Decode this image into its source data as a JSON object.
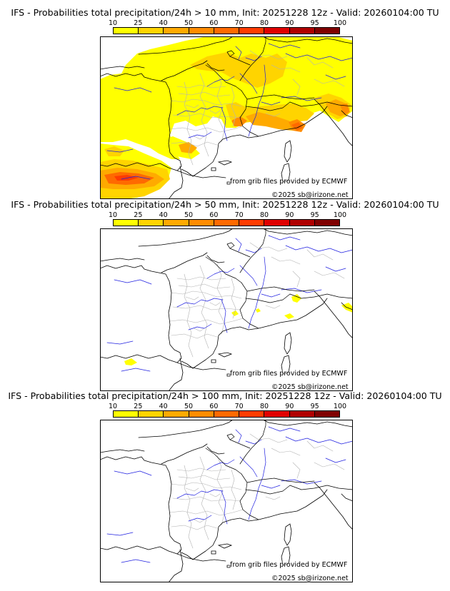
{
  "panels": [
    {
      "id": "p10",
      "title": "IFS - Probabilities total precipitation/24h > 10 mm, Init: 20251228 12z - Valid: 20260104:00 TU",
      "coverage": "wide"
    },
    {
      "id": "p50",
      "title": "IFS - Probabilities total precipitation/24h > 50 mm, Init: 20251228 12z - Valid: 20260104:00 TU",
      "coverage": "sparse"
    },
    {
      "id": "p100",
      "title": "IFS - Probabilities total precipitation/24h > 100 mm, Init: 20251228 12z - Valid: 20260104:00 TU",
      "coverage": "none"
    }
  ],
  "legend": {
    "ticks": [
      "10",
      "25",
      "40",
      "50",
      "60",
      "70",
      "80",
      "90",
      "95",
      "100"
    ],
    "colors": [
      "#ffff00",
      "#ffd400",
      "#ffaa00",
      "#ff8c00",
      "#ff6a00",
      "#ff3c00",
      "#e00000",
      "#b00000",
      "#800000"
    ]
  },
  "credits": {
    "source": "from grib files provided by ECMWF",
    "copyright": "©2025 sb@irizone.net"
  },
  "map_colors": {
    "coast": "#000000",
    "borders": "#000000",
    "regions": "#b4b4b4",
    "rivers": "#2020e0"
  }
}
